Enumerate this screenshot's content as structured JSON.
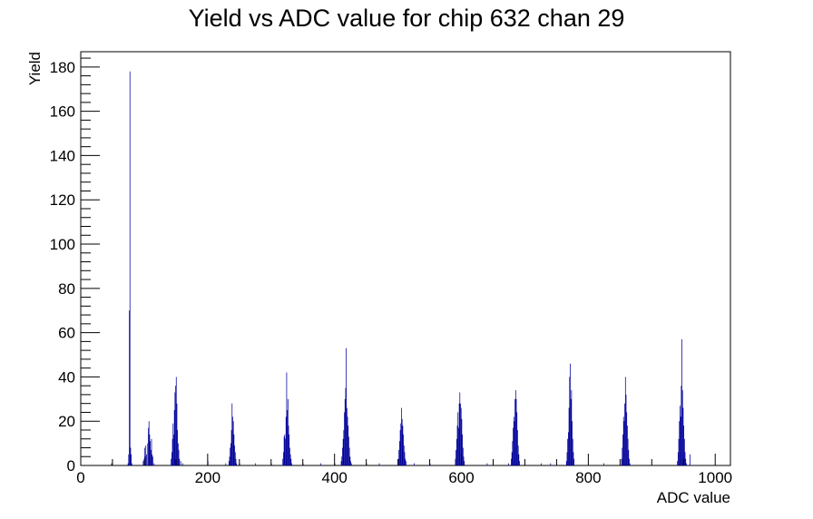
{
  "chart_data": {
    "type": "bar",
    "title": "Yield vs ADC value for chip 632 chan 29",
    "xlabel": "ADC value",
    "ylabel": "Yield",
    "xlim": [
      0,
      1024
    ],
    "ylim": [
      0,
      186.9
    ],
    "x_ticks": [
      0,
      200,
      400,
      600,
      800,
      1000
    ],
    "y_ticks": [
      0,
      20,
      40,
      60,
      80,
      100,
      120,
      140,
      160,
      180
    ],
    "grid": false,
    "legend": "none",
    "colors": {
      "series": "#000099",
      "axes": "#000000"
    },
    "series": [
      {
        "bins": [
          [
            48,
            1
          ],
          [
            74,
            1
          ],
          [
            75,
            5
          ],
          [
            76,
            70
          ],
          [
            77,
            178
          ],
          [
            78,
            8
          ],
          [
            79,
            5
          ],
          [
            80,
            1
          ],
          [
            98,
            2
          ],
          [
            100,
            8
          ],
          [
            101,
            4
          ],
          [
            102,
            9
          ],
          [
            103,
            5
          ],
          [
            105,
            10
          ],
          [
            106,
            17
          ],
          [
            107,
            20
          ],
          [
            108,
            14
          ],
          [
            109,
            11
          ],
          [
            110,
            7
          ],
          [
            111,
            12
          ],
          [
            112,
            5
          ],
          [
            113,
            4
          ],
          [
            115,
            1
          ],
          [
            142,
            3
          ],
          [
            143,
            6
          ],
          [
            144,
            12
          ],
          [
            145,
            19
          ],
          [
            146,
            14
          ],
          [
            147,
            25
          ],
          [
            148,
            33
          ],
          [
            149,
            36
          ],
          [
            150,
            40
          ],
          [
            151,
            28
          ],
          [
            152,
            16
          ],
          [
            153,
            10
          ],
          [
            154,
            7
          ],
          [
            155,
            3
          ],
          [
            157,
            2
          ],
          [
            160,
            1
          ],
          [
            200,
            2
          ],
          [
            228,
            1
          ],
          [
            233,
            2
          ],
          [
            234,
            4
          ],
          [
            235,
            8
          ],
          [
            236,
            10
          ],
          [
            237,
            16
          ],
          [
            238,
            28
          ],
          [
            239,
            22
          ],
          [
            240,
            20
          ],
          [
            241,
            14
          ],
          [
            242,
            9
          ],
          [
            243,
            6
          ],
          [
            244,
            3
          ],
          [
            245,
            1
          ],
          [
            250,
            1
          ],
          [
            275,
            1
          ],
          [
            300,
            1
          ],
          [
            318,
            3
          ],
          [
            319,
            6
          ],
          [
            320,
            13
          ],
          [
            321,
            14
          ],
          [
            322,
            12
          ],
          [
            323,
            22
          ],
          [
            324,
            42
          ],
          [
            325,
            25
          ],
          [
            326,
            30
          ],
          [
            327,
            18
          ],
          [
            328,
            14
          ],
          [
            329,
            8
          ],
          [
            330,
            5
          ],
          [
            331,
            3
          ],
          [
            332,
            1
          ],
          [
            350,
            1
          ],
          [
            378,
            1
          ],
          [
            400,
            1
          ],
          [
            410,
            2
          ],
          [
            411,
            4
          ],
          [
            412,
            8
          ],
          [
            413,
            12
          ],
          [
            414,
            16
          ],
          [
            415,
            24
          ],
          [
            416,
            30
          ],
          [
            417,
            35
          ],
          [
            418,
            53
          ],
          [
            419,
            26
          ],
          [
            420,
            22
          ],
          [
            421,
            18
          ],
          [
            422,
            13
          ],
          [
            423,
            8
          ],
          [
            424,
            4
          ],
          [
            425,
            2
          ],
          [
            426,
            1
          ],
          [
            450,
            1
          ],
          [
            470,
            1
          ],
          [
            500,
            3
          ],
          [
            501,
            7
          ],
          [
            502,
            11
          ],
          [
            503,
            16
          ],
          [
            504,
            19
          ],
          [
            505,
            26
          ],
          [
            506,
            21
          ],
          [
            507,
            18
          ],
          [
            508,
            14
          ],
          [
            509,
            9
          ],
          [
            510,
            6
          ],
          [
            511,
            3
          ],
          [
            512,
            2
          ],
          [
            525,
            1
          ],
          [
            550,
            1
          ],
          [
            590,
            3
          ],
          [
            591,
            7
          ],
          [
            592,
            12
          ],
          [
            593,
            18
          ],
          [
            594,
            24
          ],
          [
            595,
            17
          ],
          [
            596,
            28
          ],
          [
            597,
            33
          ],
          [
            598,
            28
          ],
          [
            599,
            26
          ],
          [
            600,
            21
          ],
          [
            601,
            14
          ],
          [
            602,
            8
          ],
          [
            603,
            4
          ],
          [
            604,
            2
          ],
          [
            640,
            1
          ],
          [
            674,
            1
          ],
          [
            678,
            3
          ],
          [
            679,
            6
          ],
          [
            680,
            11
          ],
          [
            681,
            17
          ],
          [
            682,
            22
          ],
          [
            683,
            20
          ],
          [
            684,
            30
          ],
          [
            685,
            34
          ],
          [
            686,
            30
          ],
          [
            687,
            24
          ],
          [
            688,
            16
          ],
          [
            689,
            9
          ],
          [
            690,
            5
          ],
          [
            691,
            2
          ],
          [
            725,
            1
          ],
          [
            740,
            1
          ],
          [
            765,
            2
          ],
          [
            766,
            6
          ],
          [
            767,
            12
          ],
          [
            768,
            15
          ],
          [
            769,
            26
          ],
          [
            770,
            40
          ],
          [
            771,
            46
          ],
          [
            772,
            30
          ],
          [
            773,
            34
          ],
          [
            774,
            20
          ],
          [
            775,
            12
          ],
          [
            776,
            6
          ],
          [
            777,
            3
          ],
          [
            824,
            1
          ],
          [
            852,
            3
          ],
          [
            853,
            8
          ],
          [
            854,
            14
          ],
          [
            855,
            22
          ],
          [
            856,
            20
          ],
          [
            857,
            28
          ],
          [
            858,
            40
          ],
          [
            859,
            32
          ],
          [
            860,
            24
          ],
          [
            861,
            18
          ],
          [
            862,
            12
          ],
          [
            863,
            7
          ],
          [
            864,
            3
          ],
          [
            865,
            1
          ],
          [
            940,
            2
          ],
          [
            941,
            6
          ],
          [
            942,
            12
          ],
          [
            943,
            20
          ],
          [
            944,
            27
          ],
          [
            945,
            22
          ],
          [
            946,
            36
          ],
          [
            947,
            57
          ],
          [
            948,
            34
          ],
          [
            949,
            26
          ],
          [
            950,
            18
          ],
          [
            951,
            12
          ],
          [
            952,
            6
          ],
          [
            953,
            3
          ],
          [
            954,
            1
          ],
          [
            960,
            5
          ]
        ]
      }
    ]
  }
}
